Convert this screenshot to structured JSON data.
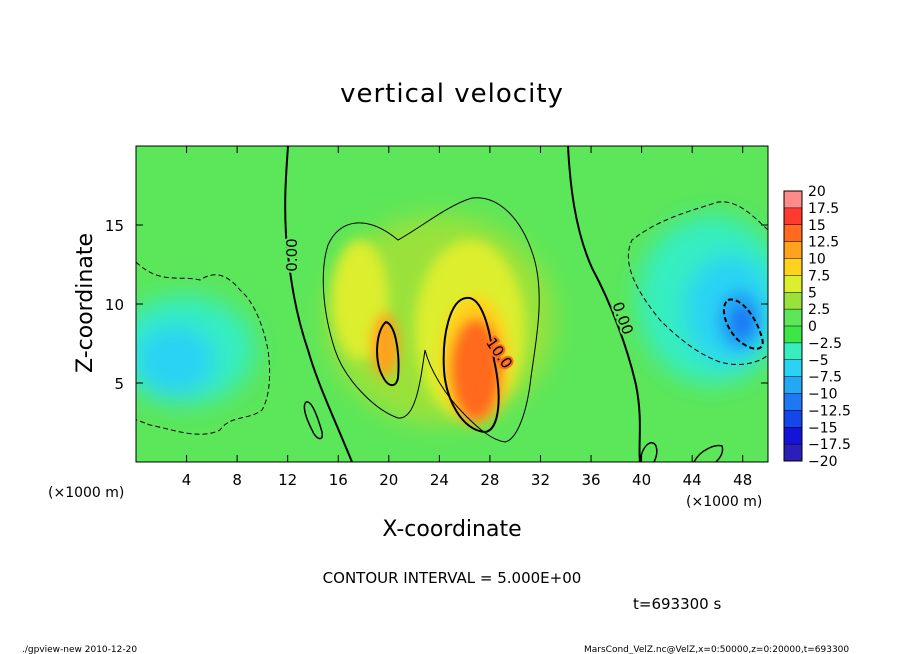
{
  "chart_data": {
    "type": "heatmap",
    "title": "vertical velocity",
    "xlabel": "X-coordinate",
    "ylabel": "Z-coordinate",
    "x_unit": "(×1000 m)",
    "y_unit": "(×1000 m)",
    "xlim": [
      0,
      50
    ],
    "ylim": [
      0,
      20
    ],
    "x_ticks": [
      4,
      8,
      12,
      16,
      20,
      24,
      28,
      32,
      36,
      40,
      44,
      48
    ],
    "y_ticks": [
      5,
      10,
      15
    ],
    "colorbar": {
      "levels": [
        -20,
        -17.5,
        -15,
        -12.5,
        -10,
        -7.5,
        -5,
        -2.5,
        0,
        2.5,
        5,
        7.5,
        10,
        12.5,
        15,
        17.5,
        20
      ],
      "labels": [
        "20",
        "17.5",
        "15",
        "12.5",
        "10",
        "7.5",
        "5",
        "2.5",
        "0",
        "−2.5",
        "−5",
        "−7.5",
        "−10",
        "−12.5",
        "−15",
        "−17.5",
        "−20"
      ],
      "colors": [
        "#7a1fb0",
        "#2a1fb8",
        "#1414d8",
        "#1446ee",
        "#1e78f4",
        "#24a8f4",
        "#2cd2f4",
        "#36eec0",
        "#3ce646",
        "#5ce65a",
        "#9ae23a",
        "#dcee2e",
        "#ffd21e",
        "#ffa21e",
        "#ff6a1e",
        "#ff3a2e",
        "#ff8a8a"
      ]
    },
    "contour_interval": "CONTOUR INTERVAL = 5.000E+00",
    "contour_labels": [
      "0.00",
      "10.0",
      "0.00"
    ],
    "features": [
      {
        "name": "updraft-core",
        "x": 27,
        "z": 6,
        "value": 12.5
      },
      {
        "name": "updraft-secondary",
        "x": 20,
        "z": 8,
        "value": 12
      },
      {
        "name": "downdraft-right",
        "x": 47,
        "z": 9.5,
        "value": -10
      },
      {
        "name": "downdraft-left",
        "x": 3,
        "z": 6,
        "value": -5
      }
    ]
  },
  "annotations": {
    "time": "t=693300 s",
    "program": "./gpview-new   2010-12-20",
    "source": "MarsCond_VelZ.nc@VelZ,x=0:50000,z=0:20000,t=693300"
  }
}
